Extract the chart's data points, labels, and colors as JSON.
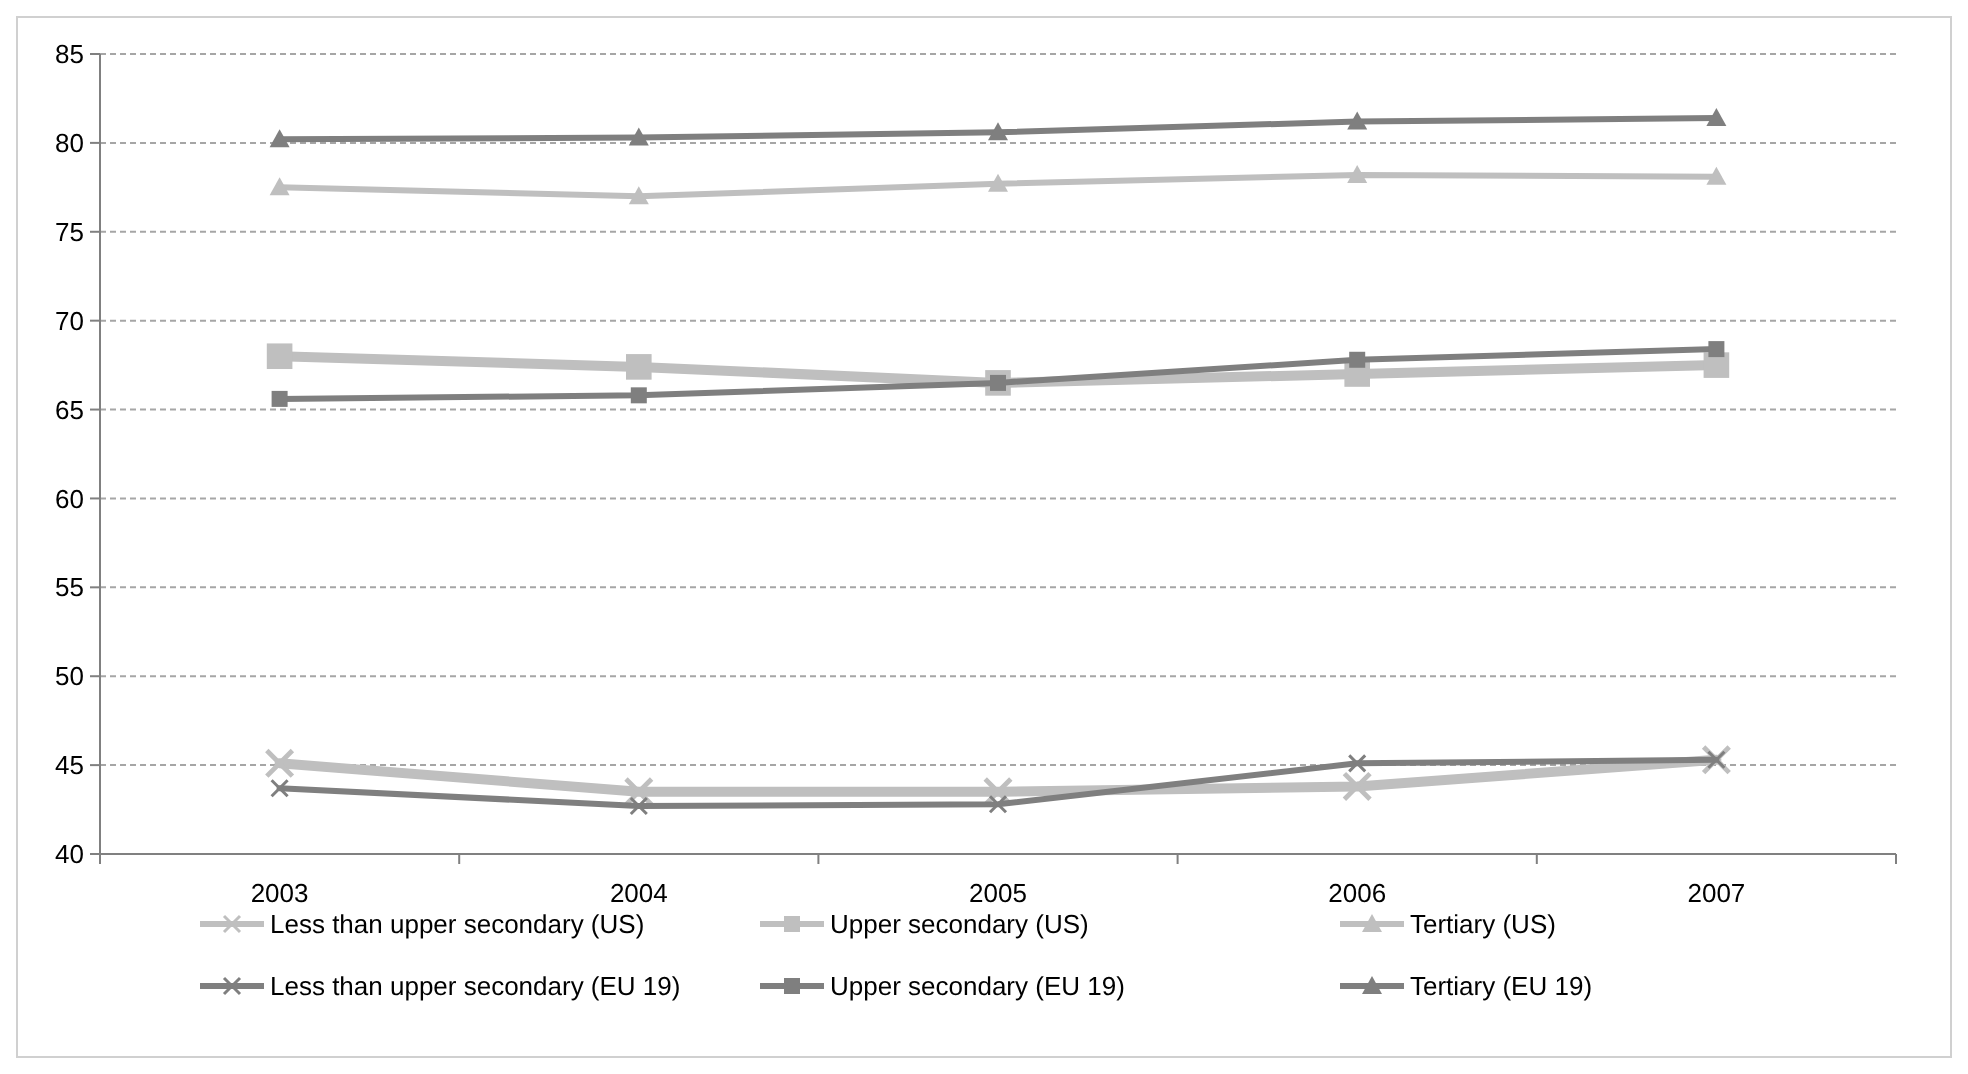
{
  "chart_data": {
    "type": "line",
    "categories": [
      "2003",
      "2004",
      "2005",
      "2006",
      "2007"
    ],
    "ylim": [
      40,
      85
    ],
    "yticks": [
      40,
      45,
      50,
      55,
      60,
      65,
      70,
      75,
      80,
      85
    ],
    "grid": "y",
    "legend": "bottom",
    "series": [
      {
        "name": "Less than upper secondary (US)",
        "color": "#bfbfbf",
        "marker": "cross",
        "values": [
          45.1,
          43.5,
          43.5,
          43.8,
          45.3
        ]
      },
      {
        "name": "Upper secondary (US)",
        "color": "#bfbfbf",
        "marker": "square",
        "values": [
          68.0,
          67.4,
          66.5,
          67.0,
          67.5
        ]
      },
      {
        "name": "Tertiary (US)",
        "color": "#bfbfbf",
        "marker": "triangle",
        "values": [
          77.5,
          77.0,
          77.7,
          78.2,
          78.1
        ]
      },
      {
        "name": "Less than upper secondary (EU 19)",
        "color": "#7f7f7f",
        "marker": "cross",
        "values": [
          43.7,
          42.7,
          42.8,
          45.1,
          45.3
        ]
      },
      {
        "name": "Upper secondary (EU 19)",
        "color": "#7f7f7f",
        "marker": "square",
        "values": [
          65.6,
          65.8,
          66.5,
          67.8,
          68.4
        ]
      },
      {
        "name": "Tertiary (EU 19)",
        "color": "#7f7f7f",
        "marker": "triangle",
        "values": [
          80.2,
          80.3,
          80.6,
          81.2,
          81.4
        ]
      }
    ]
  }
}
